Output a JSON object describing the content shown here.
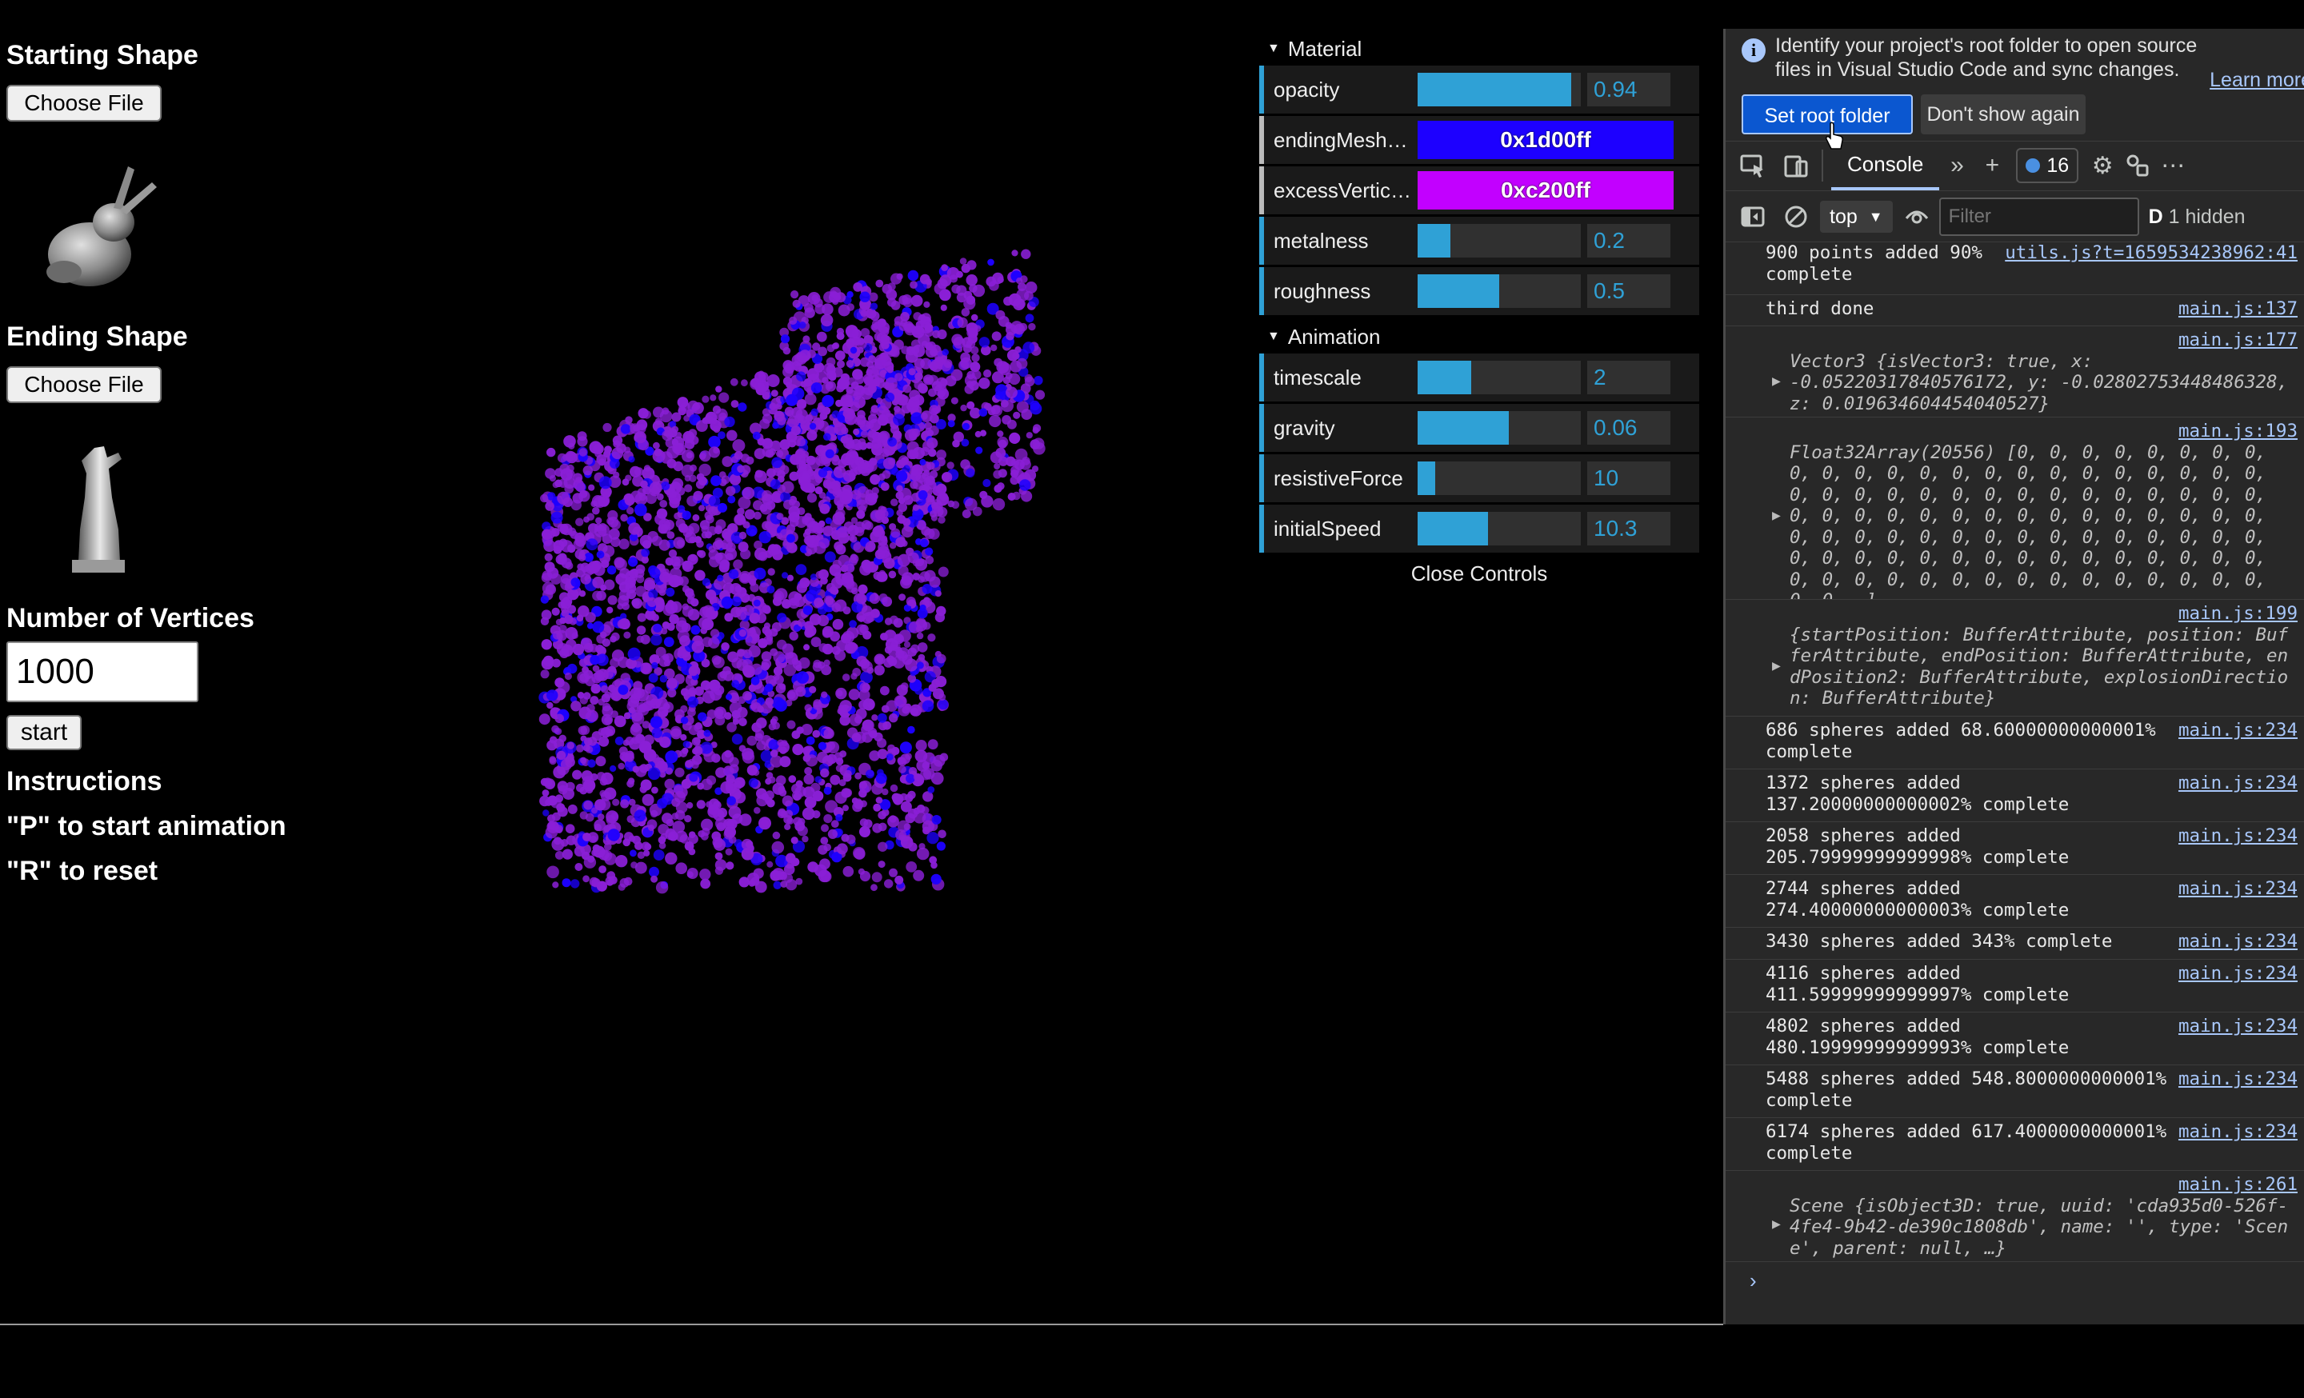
{
  "left_panel": {
    "starting_shape_label": "Starting Shape",
    "starting_file_button": "Choose File",
    "ending_shape_label": "Ending Shape",
    "ending_file_button": "Choose File",
    "vertices_label": "Number of Vertices",
    "vertices_value": "1000",
    "start_button": "start",
    "instructions_heading": "Instructions",
    "instruction_p": "\"P\" to start animation",
    "instruction_r": "\"R\" to reset"
  },
  "gui": {
    "material_folder": "Material",
    "animation_folder": "Animation",
    "close_label": "Close Controls",
    "material": {
      "opacity": {
        "label": "opacity",
        "value": "0.94",
        "fraction": 0.94
      },
      "endingMeshColor": {
        "label": "endingMeshCo…",
        "value": "0x1d00ff",
        "color": "#1d00ff"
      },
      "excessVertices": {
        "label": "excessVertices…",
        "value": "0xc200ff",
        "color": "#c200ff"
      },
      "metalness": {
        "label": "metalness",
        "value": "0.2",
        "fraction": 0.2
      },
      "roughness": {
        "label": "roughness",
        "value": "0.5",
        "fraction": 0.5
      }
    },
    "animation": {
      "timescale": {
        "label": "timescale",
        "value": "2",
        "fraction": 0.33
      },
      "gravity": {
        "label": "gravity",
        "value": "0.06",
        "fraction": 0.56
      },
      "resistiveForce": {
        "label": "resistiveForce",
        "value": "10",
        "fraction": 0.11
      },
      "initialSpeed": {
        "label": "initialSpeed",
        "value": "10.3",
        "fraction": 0.43
      }
    }
  },
  "devtools": {
    "info_text": "Identify your project's root folder to open source files in Visual Studio Code and sync changes.",
    "learn_more": "Learn more",
    "set_root_button": "Set root folder",
    "dont_show_button": "Don't show again",
    "console_tab": "Console",
    "issues_count": "16",
    "context": "top",
    "filter_placeholder": "Filter",
    "hidden_count": "1 hidden",
    "logs": {
      "l0": {
        "text": "900 points added 90% complete",
        "src": "utils.js?t=1659534238962:41"
      },
      "l1": {
        "text": "third done",
        "src": "main.js:137"
      },
      "l2": {
        "src": "main.js:177",
        "text": "Vector3 {isVector3: true, x: -0.05220317840576172, y: -0.02802753448486328, z: 0.019634604454040527}"
      },
      "l3": {
        "src": "main.js:193",
        "text": "Float32Array(20556) [0, 0, 0, 0, 0, 0, 0, 0, 0, 0, 0, 0, 0, 0, 0, 0, 0, 0, 0, 0, 0, 0, 0, 0, 0, 0, 0, 0, 0, 0, 0, 0, 0, 0, 0, 0, 0, 0, 0, 0, 0, 0, 0, 0, 0, 0, 0, 0, 0, 0, 0, 0, 0, 0, 0, 0, 0, 0, 0, 0, 0, 0, 0, 0, 0, 0, 0, 0, 0, 0, 0, 0, 0, 0, 0, 0, 0, 0, 0, 0, 0, 0, 0, 0, 0, 0, 0, 0, 0, 0, 0, 0, 0, 0, 0, 0, 0, 0, 0, 0, …]"
      },
      "l4": {
        "src": "main.js:199",
        "text": "{startPosition: BufferAttribute, position: BufferAttribute, endPosition: BufferAttribute, endPosition2: BufferAttribute, explosionDirection: BufferAttribute}"
      },
      "l5": {
        "text": "686 spheres added 68.60000000000001% complete",
        "src": "main.js:234"
      },
      "l6": {
        "text": "1372 spheres added 137.20000000000002% complete",
        "src": "main.js:234"
      },
      "l7": {
        "text": "2058 spheres added 205.79999999999998% complete",
        "src": "main.js:234"
      },
      "l8": {
        "text": "2744 spheres added 274.40000000000003% complete",
        "src": "main.js:234"
      },
      "l9": {
        "text": "3430 spheres added 343% complete",
        "src": "main.js:234"
      },
      "l10": {
        "text": "4116 spheres added 411.59999999999997% complete",
        "src": "main.js:234"
      },
      "l11": {
        "text": "4802 spheres added 480.19999999999993% complete",
        "src": "main.js:234"
      },
      "l12": {
        "text": "5488 spheres added 548.8000000000001% complete",
        "src": "main.js:234"
      },
      "l13": {
        "text": "6174 spheres added 617.4000000000001% complete",
        "src": "main.js:234"
      },
      "l14": {
        "src": "main.js:261",
        "text": "Scene {isObject3D: true, uuid: 'cda935d0-526f-4fe4-9b42-de390c1808db', name: '', type: 'Scene', parent: null, …}"
      }
    }
  },
  "colors": {
    "accent": "#2fa1d6",
    "sphere_purple": "#8a1fd6",
    "sphere_blue": "#1d00ff",
    "devtools_bg": "#282828",
    "link": "#a8c7fa"
  }
}
